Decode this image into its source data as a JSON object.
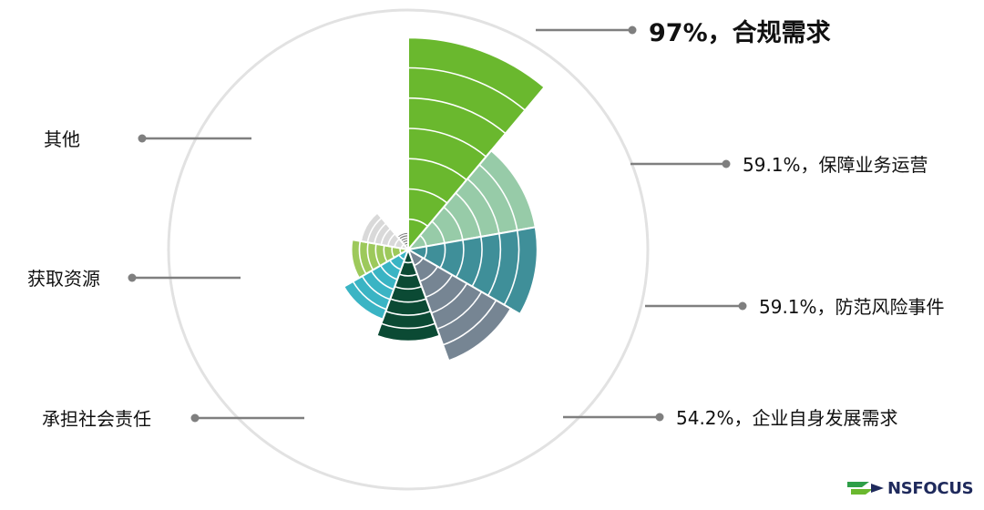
{
  "chart_data": {
    "type": "polar-area",
    "title": "",
    "rings": 7,
    "series": [
      {
        "label": "97%，合规需求",
        "value": 97,
        "color": "#6ab82e"
      },
      {
        "label": "59.1%，保障业务运营",
        "value": 59.1,
        "color": "#97cba8"
      },
      {
        "label": "59.1%，防范风险事件",
        "value": 59.1,
        "color": "#3f8f99"
      },
      {
        "label": "54.2%，企业自身发展需求",
        "value": 54.2,
        "color": "#768593"
      },
      {
        "label": "承担社会责任",
        "value": 42,
        "color": "#0b4a34"
      },
      {
        "label": "获取资源",
        "value": 34,
        "color": "#3ab4c4"
      },
      {
        "label": "其他",
        "value": 26,
        "color": "#9dc95b"
      },
      {
        "label": "",
        "value": 22,
        "color": "#d9d9d9"
      },
      {
        "label": "",
        "value": 8,
        "color": "#7f7f7f"
      }
    ]
  },
  "logo": {
    "text": "NSFOCUS"
  }
}
